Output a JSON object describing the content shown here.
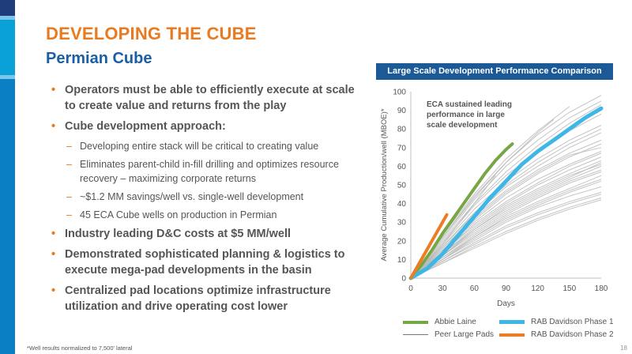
{
  "slide": {
    "title": "DEVELOPING THE CUBE",
    "subtitle": "Permian Cube",
    "footnote": "*Well results normalized to 7,500' lateral",
    "page_number": "18"
  },
  "bullets": [
    {
      "level": 1,
      "text": "Operators must be able to efficiently execute at scale to create value and returns from the play"
    },
    {
      "level": 1,
      "text": "Cube development approach:"
    },
    {
      "level": 2,
      "text": "Developing entire stack will be critical to creating value"
    },
    {
      "level": 2,
      "text": "Eliminates parent-child in-fill drilling and optimizes resource recovery – maximizing corporate returns"
    },
    {
      "level": 2,
      "text": "~$1.2 MM savings/well vs. single-well development"
    },
    {
      "level": 2,
      "text": "45 ECA Cube wells on production in Permian"
    },
    {
      "level": 1,
      "text": "Industry leading D&C costs at $5 MM/well"
    },
    {
      "level": 1,
      "text": "Demonstrated sophisticated planning & logistics to execute mega-pad developments in the basin"
    },
    {
      "level": 1,
      "text": "Centralized pad locations optimize infrastructure utilization and drive operating cost lower"
    }
  ],
  "colors": {
    "title": "#e97a1f",
    "subtitle": "#1a5fa6",
    "header_bg": "#1b5a97",
    "abbie": "#77a744",
    "peer": "#b8b8b8",
    "rab1": "#3fb7e6",
    "rab2": "#ec7d25"
  },
  "chart_data": {
    "type": "line",
    "title": "Large Scale Development Performance Comparison",
    "xlabel": "Days",
    "ylabel": "Average Cumulative Production/well (MBOE)*",
    "xlim": [
      0,
      180
    ],
    "ylim": [
      0,
      100
    ],
    "xticks": [
      0,
      30,
      60,
      90,
      120,
      150,
      180
    ],
    "yticks": [
      0,
      10,
      20,
      30,
      40,
      50,
      60,
      70,
      80,
      90,
      100
    ],
    "grid": false,
    "legend_position": "bottom",
    "annotation": "ECA sustained leading performance in large scale development",
    "series": [
      {
        "name": "Abbie Laine",
        "color_key": "abbie",
        "x": [
          0,
          10,
          20,
          30,
          40,
          50,
          60,
          70,
          80,
          90,
          96
        ],
        "y": [
          0,
          7,
          15,
          24,
          32,
          40,
          48,
          56,
          63,
          69,
          72
        ]
      },
      {
        "name": "RAB Davidson Phase 1",
        "color_key": "rab1",
        "x": [
          0,
          15,
          30,
          45,
          60,
          75,
          90,
          105,
          120,
          135,
          150,
          165,
          180
        ],
        "y": [
          0,
          5,
          13,
          23,
          33,
          43,
          52,
          61,
          68,
          74,
          80,
          86,
          91
        ]
      },
      {
        "name": "RAB Davidson Phase 2",
        "color_key": "rab2",
        "x": [
          0,
          5,
          10,
          15,
          20,
          25,
          30,
          34
        ],
        "y": [
          0,
          5,
          10,
          15,
          20,
          25,
          30,
          34
        ]
      },
      {
        "name": "Peer Large Pads",
        "color_key": "peer",
        "lines": [
          {
            "x": [
              0,
              30,
              60,
              90,
              120,
              150,
              180
            ],
            "y": [
              0,
              12,
              25,
              36,
              45,
              53,
              60
            ]
          },
          {
            "x": [
              0,
              30,
              60,
              90,
              120,
              150,
              180
            ],
            "y": [
              0,
              10,
              21,
              31,
              39,
              46,
              52
            ]
          },
          {
            "x": [
              0,
              30,
              60,
              90,
              120,
              150,
              180
            ],
            "y": [
              0,
              14,
              29,
              41,
              51,
              60,
              67
            ]
          },
          {
            "x": [
              0,
              30,
              60,
              90,
              120,
              150,
              180
            ],
            "y": [
              0,
              9,
              19,
              28,
              35,
              41,
              46
            ]
          },
          {
            "x": [
              0,
              30,
              60,
              90,
              120,
              150,
              180
            ],
            "y": [
              0,
              8,
              17,
              25,
              32,
              38,
              43
            ]
          },
          {
            "x": [
              0,
              30,
              60,
              90,
              120,
              150,
              180
            ],
            "y": [
              0,
              16,
              33,
              47,
              58,
              67,
              74
            ]
          },
          {
            "x": [
              0,
              30,
              60,
              90,
              120,
              150,
              180
            ],
            "y": [
              0,
              11,
              23,
              34,
              43,
              51,
              57
            ]
          },
          {
            "x": [
              0,
              30,
              60,
              90,
              120,
              150,
              180
            ],
            "y": [
              0,
              13,
              27,
              39,
              48,
              56,
              63
            ]
          },
          {
            "x": [
              0,
              30,
              60,
              90,
              120,
              150,
              180
            ],
            "y": [
              0,
              18,
              37,
              52,
              64,
              74,
              82
            ]
          },
          {
            "x": [
              0,
              30,
              60,
              90,
              120,
              150,
              180
            ],
            "y": [
              0,
              10,
              20,
              30,
              38,
              44,
              49
            ]
          },
          {
            "x": [
              0,
              30,
              60,
              90,
              120,
              150,
              180
            ],
            "y": [
              0,
              12,
              24,
              35,
              44,
              52,
              58
            ]
          },
          {
            "x": [
              0,
              30,
              60,
              90,
              120,
              150,
              180
            ],
            "y": [
              0,
              15,
              31,
              45,
              56,
              65,
              72
            ]
          },
          {
            "x": [
              0,
              30,
              60,
              90,
              120,
              150,
              180
            ],
            "y": [
              0,
              20,
              40,
              57,
              71,
              83,
              93
            ]
          },
          {
            "x": [
              0,
              30,
              60,
              90,
              120,
              150,
              180
            ],
            "y": [
              0,
              22,
              43,
              62,
              77,
              89,
              98
            ]
          },
          {
            "x": [
              0,
              30,
              60,
              90,
              120,
              150,
              180
            ],
            "y": [
              0,
              19,
              39,
              55,
              68,
              79,
              88
            ]
          },
          {
            "x": [
              0,
              30,
              60,
              90,
              120,
              150,
              180
            ],
            "y": [
              0,
              17,
              34,
              49,
              60,
              70,
              78
            ]
          },
          {
            "x": [
              0,
              30,
              60,
              90,
              120,
              150,
              180
            ],
            "y": [
              0,
              11,
              22,
              32,
              40,
              47,
              53
            ]
          },
          {
            "x": [
              0,
              30,
              60,
              90,
              120,
              150,
              180
            ],
            "y": [
              0,
              13,
              26,
              38,
              47,
              55,
              61
            ]
          },
          {
            "x": [
              0,
              30,
              60,
              90,
              120,
              150,
              180
            ],
            "y": [
              0,
              9,
              18,
              27,
              34,
              40,
              45
            ]
          },
          {
            "x": [
              0,
              30,
              60,
              90,
              120,
              150,
              180
            ],
            "y": [
              0,
              14,
              28,
              40,
              50,
              58,
              65
            ]
          },
          {
            "x": [
              0,
              30,
              60,
              90,
              120,
              150,
              180
            ],
            "y": [
              0,
              16,
              32,
              46,
              57,
              66,
              70
            ]
          },
          {
            "x": [
              0,
              30,
              60,
              90,
              120,
              150,
              180
            ],
            "y": [
              0,
              12,
              26,
              37,
              46,
              54,
              62
            ]
          },
          {
            "x": [
              0,
              30,
              60,
              90,
              120,
              150,
              180
            ],
            "y": [
              0,
              10,
              22,
              33,
              41,
              48,
              55
            ]
          },
          {
            "x": [
              0,
              30,
              60,
              90,
              120,
              150,
              180
            ],
            "y": [
              0,
              15,
              30,
              43,
              53,
              61,
              68
            ]
          },
          {
            "x": [
              0,
              30,
              60,
              90,
              120,
              150,
              180
            ],
            "y": [
              0,
              21,
              42,
              60,
              74,
              86,
              95
            ]
          },
          {
            "x": [
              0,
              30,
              60,
              90,
              120,
              150
            ],
            "y": [
              0,
              23,
              45,
              64,
              79,
              92
            ]
          },
          {
            "x": [
              0,
              30,
              60,
              90,
              120,
              135
            ],
            "y": [
              0,
              22,
              44,
              62,
              78,
              85
            ]
          },
          {
            "x": [
              0,
              30,
              60,
              80
            ],
            "y": [
              0,
              18,
              40,
              55
            ]
          },
          {
            "x": [
              0,
              30,
              60,
              90,
              120,
              150,
              180
            ],
            "y": [
              0,
              8,
              16,
              24,
              31,
              37,
              42
            ]
          },
          {
            "x": [
              0,
              30,
              60,
              90,
              120,
              150,
              180
            ],
            "y": [
              0,
              17,
              35,
              50,
              62,
              72,
              80
            ]
          }
        ]
      }
    ]
  }
}
